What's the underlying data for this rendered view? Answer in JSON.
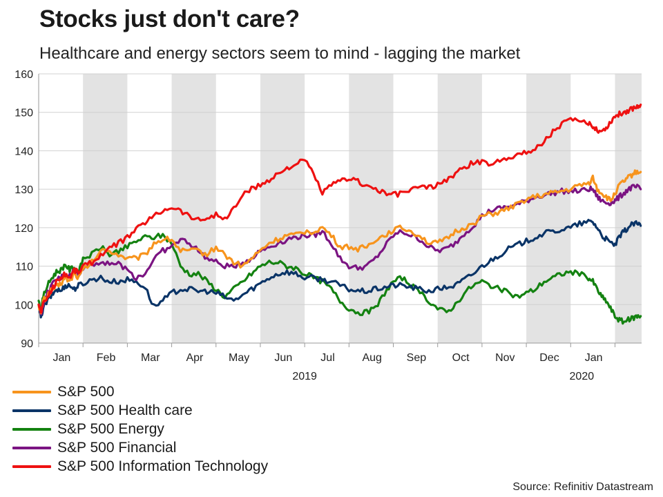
{
  "title": "Stocks just don't care?",
  "subtitle": "Healthcare and energy sectors seem to mind - lagging the market",
  "source": "Source: Refinitiv Datastream",
  "chart_data": {
    "type": "line",
    "title": "Stocks just don't care?",
    "subtitle": "Healthcare and energy sectors seem to mind - lagging the market",
    "ylim": [
      90,
      160
    ],
    "yticks": [
      90,
      100,
      110,
      120,
      130,
      140,
      150,
      160
    ],
    "xlim": [
      0,
      13.6
    ],
    "month_ticks": [
      "Jan",
      "Feb",
      "Mar",
      "Apr",
      "May",
      "Jun",
      "Jul",
      "Aug",
      "Sep",
      "Oct",
      "Nov",
      "Dec",
      "Jan"
    ],
    "year_labels": [
      {
        "label": "2019",
        "x": 6.0
      },
      {
        "label": "2020",
        "x": 12.25
      }
    ],
    "shaded_months": [
      1,
      3,
      5,
      7,
      9,
      11,
      13
    ],
    "grid": true,
    "legend_position": "bottom-left",
    "series": [
      {
        "name": "S&P 500",
        "color": "#f7941d",
        "x": [
          0,
          0.05,
          0.1,
          0.2,
          0.3,
          0.4,
          0.5,
          0.6,
          0.7,
          0.8,
          0.9,
          1.0,
          1.2,
          1.4,
          1.6,
          1.8,
          2.0,
          2.2,
          2.4,
          2.6,
          2.8,
          3.0,
          3.2,
          3.4,
          3.6,
          3.8,
          4.0,
          4.2,
          4.4,
          4.6,
          4.8,
          5.0,
          5.2,
          5.4,
          5.6,
          5.8,
          6.0,
          6.2,
          6.4,
          6.6,
          6.8,
          7.0,
          7.2,
          7.4,
          7.6,
          7.8,
          8.0,
          8.2,
          8.4,
          8.6,
          8.8,
          9.0,
          9.2,
          9.4,
          9.6,
          9.8,
          10.0,
          10.2,
          10.4,
          10.6,
          10.8,
          11.0,
          11.2,
          11.4,
          11.6,
          11.8,
          12.0,
          12.2,
          12.4,
          12.5,
          12.6,
          12.7,
          12.8,
          12.9,
          13.0,
          13.1,
          13.2,
          13.3,
          13.4,
          13.5,
          13.58
        ],
        "values": [
          100,
          97.5,
          101,
          102.5,
          104,
          104.5,
          105.5,
          107,
          106,
          108,
          107,
          109,
          111,
          114,
          114,
          113,
          112,
          112,
          113,
          116,
          117,
          117,
          114,
          114,
          114,
          113,
          115,
          113,
          111,
          110,
          112,
          114,
          116,
          117,
          118,
          118,
          119,
          119,
          120,
          118,
          115,
          115,
          114.5,
          115,
          117,
          118,
          119.5,
          120,
          119,
          118,
          116,
          116,
          117,
          119,
          120,
          121,
          123,
          123.5,
          124,
          125,
          126,
          127.5,
          128,
          128.5,
          129,
          129.5,
          130,
          131,
          131.5,
          133,
          130,
          129,
          128,
          127,
          129,
          131,
          132,
          133,
          134,
          134.5,
          134.5
        ]
      },
      {
        "name": "S&P 500 Health care",
        "color": "#0a3467",
        "x": [
          0,
          0.05,
          0.1,
          0.2,
          0.3,
          0.4,
          0.5,
          0.6,
          0.7,
          0.8,
          0.9,
          1.0,
          1.2,
          1.4,
          1.6,
          1.8,
          2.0,
          2.2,
          2.4,
          2.6,
          2.8,
          3.0,
          3.2,
          3.4,
          3.6,
          3.8,
          4.0,
          4.2,
          4.4,
          4.6,
          4.8,
          5.0,
          5.2,
          5.4,
          5.6,
          5.8,
          6.0,
          6.2,
          6.4,
          6.6,
          6.8,
          7.0,
          7.2,
          7.4,
          7.6,
          7.8,
          8.0,
          8.2,
          8.4,
          8.6,
          8.8,
          9.0,
          9.2,
          9.4,
          9.6,
          9.8,
          10.0,
          10.2,
          10.4,
          10.6,
          10.8,
          11.0,
          11.2,
          11.4,
          11.6,
          11.8,
          12.0,
          12.2,
          12.4,
          12.5,
          12.6,
          12.7,
          12.8,
          12.9,
          13.0,
          13.1,
          13.2,
          13.3,
          13.4,
          13.5,
          13.58
        ],
        "values": [
          100,
          96.5,
          99,
          101,
          102.5,
          104,
          103.5,
          105,
          105,
          104,
          105,
          105.5,
          106.5,
          107,
          106,
          106,
          106.5,
          106,
          104.5,
          99.5,
          101,
          103,
          104,
          104,
          103.5,
          103.5,
          103,
          102,
          101,
          102.5,
          104,
          105.5,
          107,
          108,
          108.5,
          108,
          107,
          107,
          106.5,
          106,
          105,
          104,
          103.5,
          103.5,
          104,
          104.5,
          105,
          105,
          104.5,
          104,
          103.5,
          104,
          104.5,
          105,
          106.5,
          108,
          110,
          111.5,
          113,
          114.5,
          115.5,
          116.5,
          117.5,
          118.5,
          119,
          119.5,
          120,
          121,
          121.5,
          121.5,
          120,
          118,
          117,
          116,
          115.5,
          117.5,
          119,
          120,
          121,
          121,
          120.5
        ]
      },
      {
        "name": "S&P 500 Energy",
        "color": "#148211",
        "x": [
          0,
          0.05,
          0.1,
          0.2,
          0.3,
          0.4,
          0.5,
          0.6,
          0.7,
          0.8,
          0.9,
          1.0,
          1.2,
          1.4,
          1.6,
          1.8,
          2.0,
          2.2,
          2.4,
          2.6,
          2.8,
          3.0,
          3.2,
          3.4,
          3.6,
          3.8,
          4.0,
          4.2,
          4.4,
          4.6,
          4.8,
          5.0,
          5.2,
          5.4,
          5.6,
          5.8,
          6.0,
          6.2,
          6.4,
          6.6,
          6.8,
          7.0,
          7.2,
          7.4,
          7.6,
          7.8,
          8.0,
          8.2,
          8.4,
          8.6,
          8.8,
          9.0,
          9.2,
          9.4,
          9.6,
          9.8,
          10.0,
          10.2,
          10.4,
          10.6,
          10.8,
          11.0,
          11.2,
          11.4,
          11.6,
          11.8,
          12.0,
          12.2,
          12.4,
          12.5,
          12.6,
          12.7,
          12.8,
          12.9,
          13.0,
          13.1,
          13.2,
          13.3,
          13.4,
          13.5,
          13.58
        ],
        "values": [
          101,
          98,
          102,
          105,
          107,
          108.5,
          109,
          110.5,
          109,
          110,
          108,
          112,
          113,
          115,
          113,
          114,
          115,
          116.5,
          117.5,
          117.5,
          118,
          116,
          110,
          108,
          108,
          106,
          104,
          102,
          104,
          106,
          108,
          110,
          111,
          111,
          110,
          109.5,
          108,
          107,
          106,
          104,
          101,
          99,
          98,
          98,
          99,
          103,
          106,
          107,
          105,
          103,
          101,
          99,
          98,
          100,
          103,
          105,
          106,
          105,
          104,
          103,
          102,
          103,
          104,
          106,
          107,
          108,
          108.5,
          108,
          107,
          106,
          104,
          102,
          101,
          99,
          97,
          96,
          95.5,
          96,
          96.5,
          97,
          97
        ]
      },
      {
        "name": "S&P 500 Financial",
        "color": "#7b1482",
        "x": [
          0,
          0.05,
          0.1,
          0.2,
          0.3,
          0.4,
          0.5,
          0.6,
          0.7,
          0.8,
          0.9,
          1.0,
          1.2,
          1.4,
          1.6,
          1.8,
          2.0,
          2.2,
          2.4,
          2.6,
          2.8,
          3.0,
          3.2,
          3.4,
          3.6,
          3.8,
          4.0,
          4.2,
          4.4,
          4.6,
          4.8,
          5.0,
          5.2,
          5.4,
          5.6,
          5.8,
          6.0,
          6.2,
          6.4,
          6.6,
          6.8,
          7.0,
          7.2,
          7.4,
          7.6,
          7.8,
          8.0,
          8.2,
          8.4,
          8.6,
          8.8,
          9.0,
          9.2,
          9.4,
          9.6,
          9.8,
          10.0,
          10.2,
          10.4,
          10.6,
          10.8,
          11.0,
          11.2,
          11.4,
          11.6,
          11.8,
          12.0,
          12.2,
          12.4,
          12.5,
          12.6,
          12.7,
          12.8,
          12.9,
          13.0,
          13.1,
          13.2,
          13.3,
          13.4,
          13.5,
          13.58
        ],
        "values": [
          100,
          97.5,
          100,
          103,
          105,
          106.5,
          107,
          108,
          107.5,
          109,
          108,
          109.5,
          110.5,
          111,
          111,
          110.5,
          109,
          107,
          108,
          112,
          114,
          115,
          117,
          116,
          114,
          112,
          111,
          110,
          110,
          111,
          112,
          114,
          115,
          116,
          117,
          117.5,
          118,
          118,
          119,
          116,
          112,
          110,
          109.5,
          110,
          112,
          115,
          118,
          119,
          118,
          117,
          115,
          114,
          114.5,
          116,
          118.5,
          120.5,
          123,
          124.5,
          125,
          125.5,
          126,
          127,
          128,
          128.5,
          129,
          129.5,
          129.5,
          129.5,
          130,
          130,
          128,
          127,
          126.5,
          126.5,
          127,
          128,
          129,
          130,
          130.5,
          130.5,
          130
        ]
      },
      {
        "name": "S&P 500 Information Technology",
        "color": "#ee1111",
        "x": [
          0,
          0.05,
          0.1,
          0.2,
          0.3,
          0.4,
          0.5,
          0.6,
          0.7,
          0.8,
          0.9,
          1.0,
          1.2,
          1.4,
          1.6,
          1.8,
          2.0,
          2.2,
          2.4,
          2.6,
          2.8,
          3.0,
          3.2,
          3.4,
          3.6,
          3.8,
          4.0,
          4.2,
          4.4,
          4.6,
          4.8,
          5.0,
          5.2,
          5.4,
          5.6,
          5.8,
          6.0,
          6.2,
          6.4,
          6.6,
          6.8,
          7.0,
          7.2,
          7.4,
          7.6,
          7.8,
          8.0,
          8.2,
          8.4,
          8.6,
          8.8,
          9.0,
          9.2,
          9.4,
          9.6,
          9.8,
          10.0,
          10.2,
          10.4,
          10.6,
          10.8,
          11.0,
          11.2,
          11.4,
          11.6,
          11.8,
          12.0,
          12.2,
          12.4,
          12.5,
          12.6,
          12.7,
          12.8,
          12.9,
          13.0,
          13.1,
          13.2,
          13.3,
          13.4,
          13.5,
          13.58
        ],
        "values": [
          100,
          98,
          100,
          102,
          104,
          106,
          107,
          108,
          107,
          109,
          108.5,
          110,
          111,
          113,
          114.5,
          116,
          117.5,
          119.5,
          121.5,
          123,
          124.5,
          125.5,
          124.5,
          123,
          122,
          122.5,
          123.5,
          122,
          125,
          128.5,
          130,
          131,
          132.5,
          134,
          135.5,
          136.5,
          137.5,
          134,
          129,
          131,
          132,
          133,
          132,
          131,
          130,
          129,
          128.5,
          129,
          130,
          130.5,
          130.5,
          131,
          132.5,
          134,
          135.5,
          137,
          137,
          136.5,
          137.5,
          138.5,
          139,
          139.5,
          140.5,
          142.5,
          145,
          147,
          148,
          147.5,
          147,
          146.5,
          145.5,
          145,
          146,
          147.5,
          149,
          149.5,
          150,
          150.5,
          151,
          151.5,
          152
        ]
      }
    ]
  }
}
